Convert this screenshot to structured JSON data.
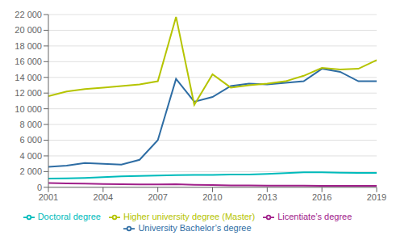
{
  "chart_data": {
    "type": "line",
    "x": [
      2001,
      2002,
      2003,
      2004,
      2005,
      2006,
      2007,
      2008,
      2009,
      2010,
      2011,
      2012,
      2013,
      2014,
      2015,
      2016,
      2017,
      2018,
      2019
    ],
    "series": [
      {
        "name": "University Bachelor’s degree",
        "color": "#2E6DA4",
        "values": [
          2600,
          2750,
          3100,
          3000,
          2900,
          3500,
          6000,
          13800,
          10900,
          11500,
          12900,
          13200,
          13100,
          13300,
          13500,
          15100,
          14700,
          13500,
          13500
        ]
      },
      {
        "name": "Higher university degree (Master)",
        "color": "#B5C400",
        "values": [
          11600,
          12200,
          12500,
          12700,
          12900,
          13100,
          13500,
          21700,
          10500,
          14400,
          12700,
          13000,
          13200,
          13500,
          14200,
          15200,
          15000,
          15100,
          16200
        ]
      },
      {
        "name": "Licentiate’s degree",
        "color": "#A0208A",
        "values": [
          550,
          500,
          480,
          430,
          380,
          370,
          360,
          380,
          310,
          280,
          250,
          230,
          210,
          200,
          200,
          195,
          195,
          185,
          185
        ]
      },
      {
        "name": "Doctoral degree",
        "color": "#00BBBB",
        "values": [
          1100,
          1150,
          1200,
          1300,
          1400,
          1450,
          1500,
          1550,
          1580,
          1580,
          1620,
          1620,
          1700,
          1800,
          1900,
          1900,
          1850,
          1820,
          1820
        ]
      }
    ],
    "xlim": [
      2001,
      2019
    ],
    "xticks": [
      2001,
      2004,
      2007,
      2010,
      2013,
      2016,
      2019
    ],
    "ylim": [
      0,
      22000
    ],
    "yticks": [
      0,
      {
        "value": 2000,
        "label": "2 000"
      },
      {
        "value": 4000,
        "label": "4 000"
      },
      {
        "value": 6000,
        "label": "6 000"
      },
      {
        "value": 8000,
        "label": "8 000"
      },
      {
        "value": 10000,
        "label": "10 000"
      },
      {
        "value": 12000,
        "label": "12 000"
      },
      {
        "value": 14000,
        "label": "14 000"
      },
      {
        "value": 16000,
        "label": "16 000"
      },
      {
        "value": 18000,
        "label": "18 000"
      },
      {
        "value": 20000,
        "label": "20 000"
      },
      {
        "value": 22000,
        "label": "22 000"
      }
    ],
    "grid": "y",
    "legend": "bottom"
  }
}
